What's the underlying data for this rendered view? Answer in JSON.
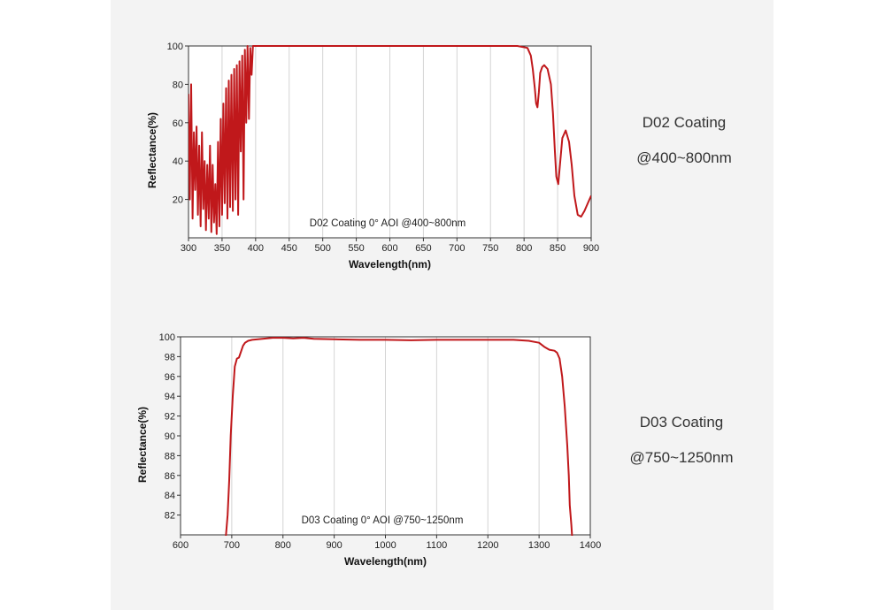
{
  "chart_data": [
    {
      "type": "line",
      "ylabel": "Reflectance(%)",
      "xlabel": "Wavelength(nm)",
      "annotation": "D02 Coating  0°  AOI @400~800nm",
      "xlim": [
        300,
        900
      ],
      "ylim": [
        0,
        100
      ],
      "x_ticks": [
        300,
        350,
        400,
        450,
        500,
        550,
        600,
        650,
        700,
        750,
        800,
        850,
        900
      ],
      "y_ticks": [
        20,
        40,
        60,
        80,
        100
      ],
      "grid": "vertical",
      "series_color": "#c0181b",
      "x": [
        300,
        302,
        304,
        306,
        308,
        310,
        312,
        314,
        316,
        318,
        320,
        322,
        324,
        326,
        328,
        330,
        332,
        334,
        336,
        338,
        340,
        342,
        344,
        346,
        348,
        350,
        352,
        354,
        356,
        358,
        360,
        362,
        364,
        366,
        368,
        370,
        372,
        374,
        376,
        378,
        380,
        382,
        384,
        386,
        388,
        390,
        392,
        394,
        396,
        400,
        450,
        500,
        550,
        600,
        650,
        700,
        750,
        790,
        805,
        810,
        813,
        816,
        818,
        820,
        822,
        824,
        827,
        830,
        835,
        840,
        843,
        846,
        848,
        851,
        854,
        857,
        862,
        867,
        871,
        875,
        880,
        885,
        890,
        895,
        900
      ],
      "y": [
        75,
        20,
        80,
        10,
        55,
        25,
        58,
        12,
        48,
        6,
        55,
        15,
        40,
        4,
        38,
        10,
        48,
        3,
        38,
        8,
        28,
        2,
        50,
        6,
        62,
        12,
        70,
        18,
        78,
        10,
        82,
        16,
        85,
        14,
        88,
        20,
        90,
        12,
        92,
        45,
        95,
        20,
        98,
        60,
        100,
        62,
        99,
        85,
        100,
        100,
        100,
        100,
        100,
        100,
        100,
        100,
        100,
        100,
        99,
        95,
        88,
        78,
        70,
        68,
        76,
        86,
        89,
        90,
        88,
        80,
        65,
        45,
        32,
        28,
        40,
        52,
        56,
        50,
        38,
        22,
        12,
        11,
        14,
        18,
        22
      ]
    },
    {
      "type": "line",
      "ylabel": "Reflectance(%)",
      "xlabel": "Wavelength(nm)",
      "annotation": "D03 Coating  0°  AOI @750~1250nm",
      "xlim": [
        600,
        1400
      ],
      "ylim": [
        80,
        100
      ],
      "x_ticks": [
        600,
        700,
        800,
        900,
        1000,
        1100,
        1200,
        1300,
        1400
      ],
      "y_ticks": [
        82,
        84,
        86,
        88,
        90,
        92,
        94,
        96,
        98,
        100
      ],
      "grid": "vertical",
      "series_color": "#c0181b",
      "x": [
        688,
        692,
        695,
        698,
        702,
        706,
        710,
        714,
        718,
        722,
        726,
        732,
        740,
        760,
        780,
        800,
        820,
        840,
        860,
        900,
        950,
        1000,
        1050,
        1100,
        1150,
        1200,
        1250,
        1280,
        1300,
        1310,
        1320,
        1330,
        1335,
        1340,
        1345,
        1350,
        1355,
        1358,
        1360,
        1363,
        1365
      ],
      "y": [
        79.5,
        82,
        85.5,
        90,
        94,
        97,
        97.8,
        97.9,
        98.5,
        99.1,
        99.4,
        99.6,
        99.7,
        99.8,
        99.9,
        99.9,
        99.85,
        99.9,
        99.8,
        99.75,
        99.7,
        99.7,
        99.65,
        99.7,
        99.7,
        99.7,
        99.7,
        99.6,
        99.4,
        99,
        98.7,
        98.6,
        98.4,
        97.8,
        96,
        93,
        89,
        86,
        83,
        81,
        79.5
      ]
    }
  ],
  "side_labels": [
    {
      "title": "D02 Coating",
      "range": "@400~800nm"
    },
    {
      "title": "D03 Coating",
      "range": "@750~1250nm"
    }
  ]
}
